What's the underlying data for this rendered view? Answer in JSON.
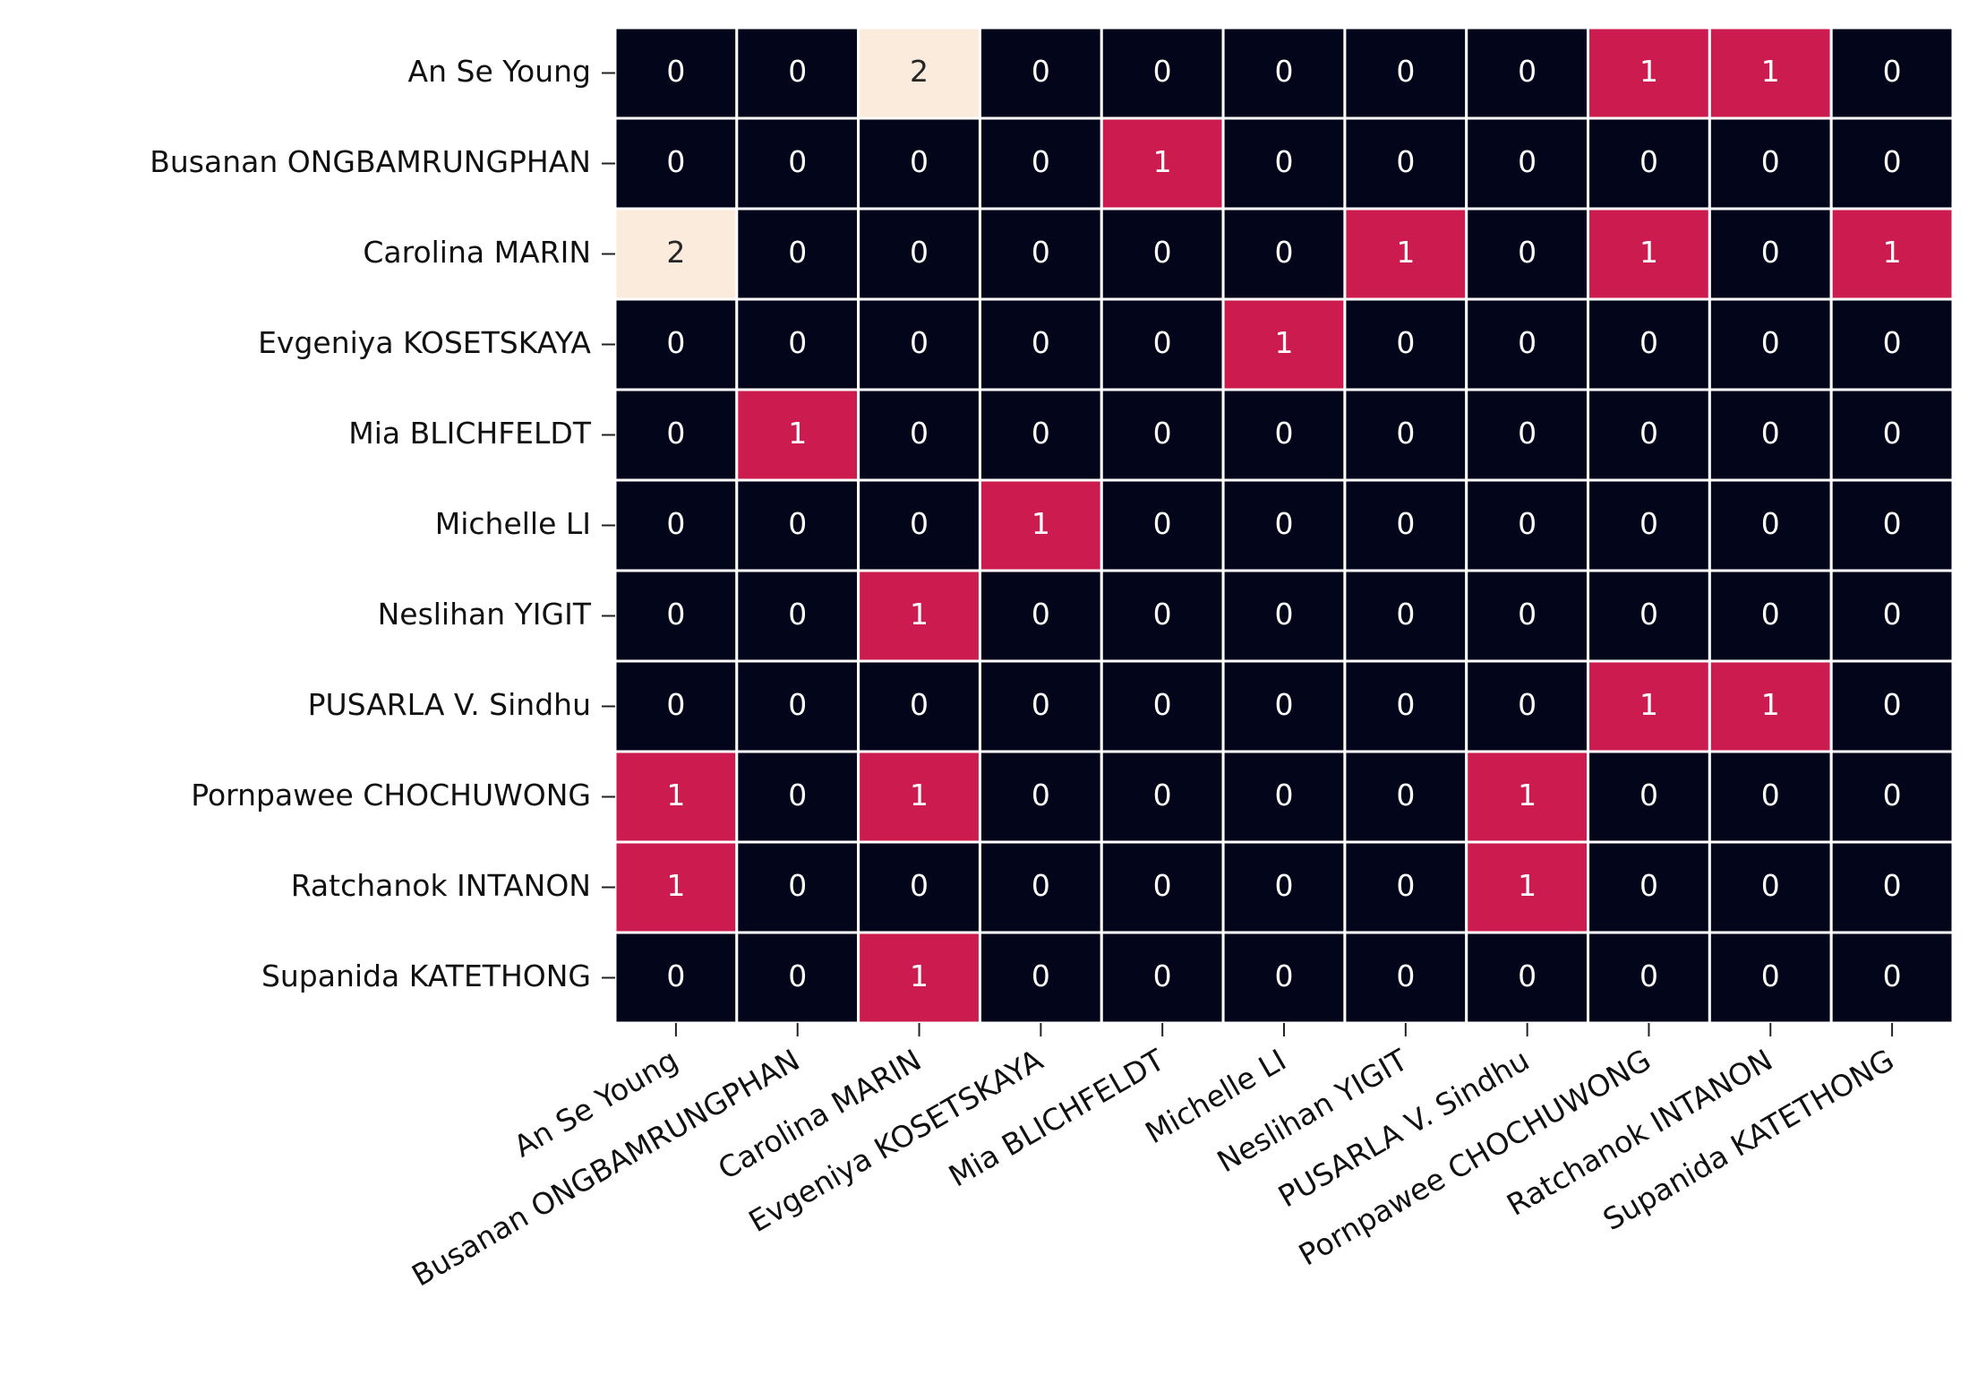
{
  "chart_data": {
    "type": "heatmap",
    "rows": [
      "An Se Young",
      "Busanan ONGBAMRUNGPHAN",
      "Carolina MARIN",
      "Evgeniya KOSETSKAYA",
      "Mia BLICHFELDT",
      "Michelle LI",
      "Neslihan YIGIT",
      "PUSARLA V. Sindhu",
      "Pornpawee CHOCHUWONG",
      "Ratchanok INTANON",
      "Supanida KATETHONG"
    ],
    "columns": [
      "An Se Young",
      "Busanan ONGBAMRUNGPHAN",
      "Carolina MARIN",
      "Evgeniya KOSETSKAYA",
      "Mia BLICHFELDT",
      "Michelle LI",
      "Neslihan YIGIT",
      "PUSARLA V. Sindhu",
      "Pornpawee CHOCHUWONG",
      "Ratchanok INTANON",
      "Supanida KATETHONG"
    ],
    "values": [
      [
        0,
        0,
        2,
        0,
        0,
        0,
        0,
        0,
        1,
        1,
        0
      ],
      [
        0,
        0,
        0,
        0,
        1,
        0,
        0,
        0,
        0,
        0,
        0
      ],
      [
        2,
        0,
        0,
        0,
        0,
        0,
        1,
        0,
        1,
        0,
        1
      ],
      [
        0,
        0,
        0,
        0,
        0,
        1,
        0,
        0,
        0,
        0,
        0
      ],
      [
        0,
        1,
        0,
        0,
        0,
        0,
        0,
        0,
        0,
        0,
        0
      ],
      [
        0,
        0,
        0,
        1,
        0,
        0,
        0,
        0,
        0,
        0,
        0
      ],
      [
        0,
        0,
        1,
        0,
        0,
        0,
        0,
        0,
        0,
        0,
        0
      ],
      [
        0,
        0,
        0,
        0,
        0,
        0,
        0,
        0,
        1,
        1,
        0
      ],
      [
        1,
        0,
        1,
        0,
        0,
        0,
        0,
        1,
        0,
        0,
        0
      ],
      [
        1,
        0,
        0,
        0,
        0,
        0,
        0,
        1,
        0,
        0,
        0
      ],
      [
        0,
        0,
        1,
        0,
        0,
        0,
        0,
        0,
        0,
        0,
        0
      ]
    ],
    "colors": [
      "#03051a",
      "#cb1b4f",
      "#faebdd"
    ]
  }
}
